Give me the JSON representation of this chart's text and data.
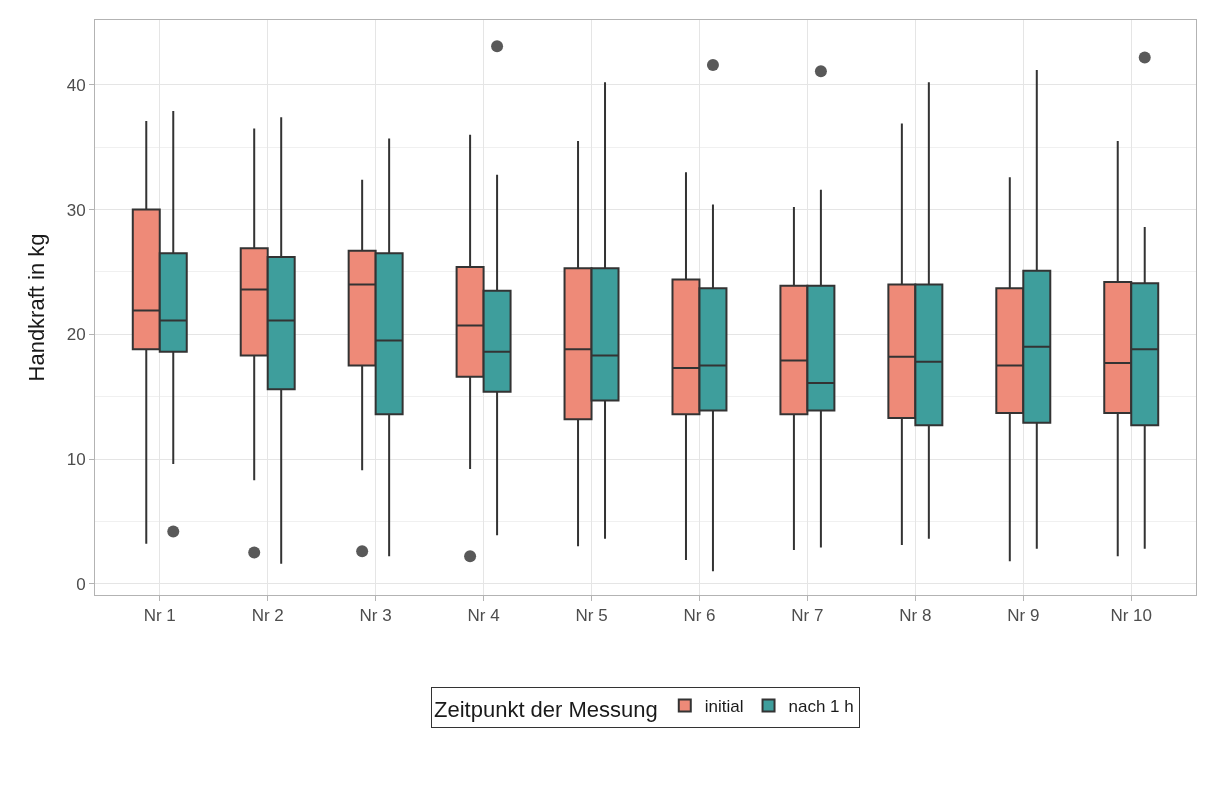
{
  "chart_data": {
    "type": "box",
    "ylabel": "Handkraft in kg",
    "legend_title": "Zeitpunkt der Messung",
    "categories": [
      "Nr 1",
      "Nr 2",
      "Nr 3",
      "Nr 4",
      "Nr 5",
      "Nr 6",
      "Nr 7",
      "Nr 8",
      "Nr 9",
      "Nr 10"
    ],
    "ylim": [
      -0.9,
      45.2
    ],
    "yticks": [
      0,
      10,
      20,
      30,
      40
    ],
    "grid": true,
    "legend": "bottom",
    "series": [
      {
        "name": "initial",
        "color": "#ee8a78",
        "boxes": [
          {
            "low": 3.2,
            "q1": 18.8,
            "median": 21.9,
            "q3": 30.0,
            "high": 37.1
          },
          {
            "low": 8.3,
            "q1": 18.3,
            "median": 23.6,
            "q3": 26.9,
            "high": 36.5,
            "outliers": [
              2.5
            ]
          },
          {
            "low": 9.1,
            "q1": 17.5,
            "median": 24.0,
            "q3": 26.7,
            "high": 32.4,
            "outliers": [
              2.6
            ]
          },
          {
            "low": 9.2,
            "q1": 16.6,
            "median": 20.7,
            "q3": 25.4,
            "high": 36.0,
            "outliers": [
              2.2
            ]
          },
          {
            "low": 3.0,
            "q1": 13.2,
            "median": 18.8,
            "q3": 25.3,
            "high": 35.5
          },
          {
            "low": 1.9,
            "q1": 13.6,
            "median": 17.3,
            "q3": 24.4,
            "high": 33.0
          },
          {
            "low": 2.7,
            "q1": 13.6,
            "median": 17.9,
            "q3": 23.9,
            "high": 30.2
          },
          {
            "low": 3.1,
            "q1": 13.3,
            "median": 18.2,
            "q3": 24.0,
            "high": 36.9
          },
          {
            "low": 1.8,
            "q1": 13.7,
            "median": 17.5,
            "q3": 23.7,
            "high": 32.6
          },
          {
            "low": 2.2,
            "q1": 13.7,
            "median": 17.7,
            "q3": 24.2,
            "high": 35.5
          }
        ]
      },
      {
        "name": "nach 1 h",
        "color": "#3e9e9c",
        "boxes": [
          {
            "low": 9.6,
            "q1": 18.6,
            "median": 21.1,
            "q3": 26.5,
            "high": 37.9,
            "outliers": [
              4.2
            ]
          },
          {
            "low": 1.6,
            "q1": 15.6,
            "median": 21.1,
            "q3": 26.2,
            "high": 37.4
          },
          {
            "low": 2.2,
            "q1": 13.6,
            "median": 19.5,
            "q3": 26.5,
            "high": 35.7
          },
          {
            "low": 3.9,
            "q1": 15.4,
            "median": 18.6,
            "q3": 23.5,
            "high": 32.8,
            "outliers": [
              43.1
            ]
          },
          {
            "low": 3.6,
            "q1": 14.7,
            "median": 18.3,
            "q3": 25.3,
            "high": 40.2
          },
          {
            "low": 1.0,
            "q1": 13.9,
            "median": 17.5,
            "q3": 23.7,
            "high": 30.4,
            "outliers": [
              41.6
            ]
          },
          {
            "low": 2.9,
            "q1": 13.9,
            "median": 16.1,
            "q3": 23.9,
            "high": 31.6,
            "outliers": [
              41.1
            ]
          },
          {
            "low": 3.6,
            "q1": 12.7,
            "median": 17.8,
            "q3": 24.0,
            "high": 40.2
          },
          {
            "low": 2.8,
            "q1": 12.9,
            "median": 19.0,
            "q3": 25.1,
            "high": 41.2
          },
          {
            "low": 2.8,
            "q1": 12.7,
            "median": 18.8,
            "q3": 24.1,
            "high": 28.6,
            "outliers": [
              42.2
            ]
          }
        ]
      }
    ]
  }
}
